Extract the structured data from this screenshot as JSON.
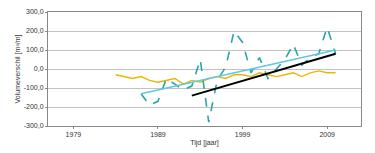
{
  "chart_data": {
    "type": "line",
    "x_label": "Tijd [jaar]",
    "y_label": "Volumeverschil [m³/m]",
    "xlim": [
      1976,
      2013
    ],
    "xticks": [
      1979,
      1989,
      1999,
      2009
    ],
    "ylim": [
      -300,
      300
    ],
    "yticks": [
      {
        "value": -300,
        "label": "-300,0"
      },
      {
        "value": -200,
        "label": "-200,0"
      },
      {
        "value": -100,
        "label": "-100,0"
      },
      {
        "value": 0,
        "label": "0,0"
      },
      {
        "value": 100,
        "label": "100,0"
      },
      {
        "value": 200,
        "label": "200,0"
      },
      {
        "value": 300,
        "label": "300,0"
      }
    ],
    "grid": true,
    "series": [
      {
        "color": "#f0b400",
        "line_style": "solid",
        "x": [
          1984,
          1985,
          1986,
          1987,
          1988,
          1989,
          1990,
          1991,
          1992,
          1993,
          1994,
          1995,
          1996,
          1997,
          1998,
          1999,
          2000,
          2001,
          2002,
          2003,
          2004,
          2005,
          2006,
          2007,
          2008,
          2009,
          2010
        ],
        "values": [
          -30,
          -40,
          -50,
          -40,
          -60,
          -70,
          -60,
          -50,
          -80,
          -60,
          -70,
          -50,
          -40,
          -50,
          -30,
          -30,
          -40,
          -20,
          -30,
          -40,
          -30,
          -20,
          -40,
          -20,
          -10,
          -20,
          -20
        ]
      },
      {
        "color": "#2aa5aa",
        "line_style": "dash",
        "x": [
          1987,
          1988,
          1989,
          1990,
          1991,
          1992,
          1993,
          1994,
          1995,
          1996,
          1997,
          1998,
          1999,
          2000,
          2001,
          2002,
          2003,
          2004,
          2005,
          2006,
          2007,
          2008,
          2009,
          2010
        ],
        "values": [
          -130,
          -190,
          -170,
          -50,
          -80,
          -110,
          -90,
          50,
          -280,
          -60,
          10,
          200,
          140,
          -20,
          60,
          -50,
          0,
          50,
          130,
          20,
          60,
          80,
          220,
          80
        ]
      },
      {
        "color": "#5ec8e0",
        "line_style": "solid",
        "x": [
          1987,
          2010
        ],
        "values": [
          -130,
          100
        ]
      },
      {
        "color": "#000000",
        "line_style": "solid",
        "x": [
          1993,
          2010
        ],
        "values": [
          -140,
          80
        ]
      }
    ]
  }
}
